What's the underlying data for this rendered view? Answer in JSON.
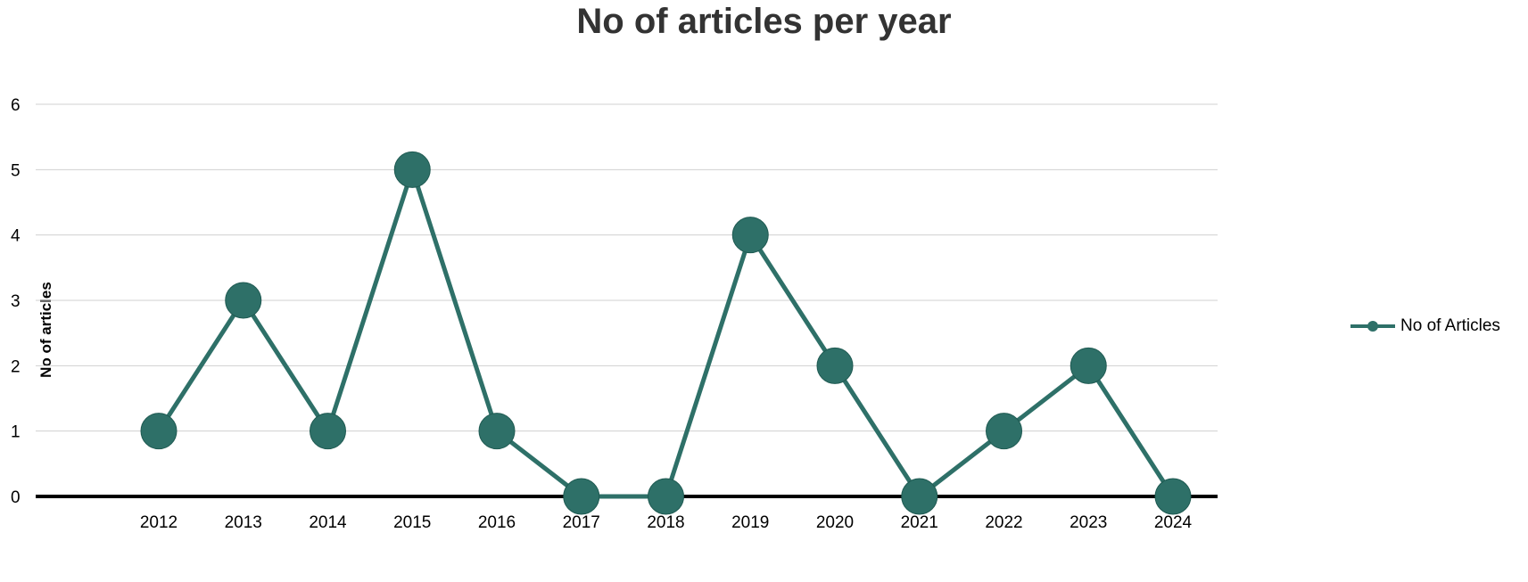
{
  "chart_data": {
    "type": "line",
    "title": "No of articles per year",
    "xlabel": "",
    "ylabel": "No of articles",
    "categories": [
      "2012",
      "2013",
      "2014",
      "2015",
      "2016",
      "2017",
      "2018",
      "2019",
      "2020",
      "2021",
      "2022",
      "2023",
      "2024"
    ],
    "series": [
      {
        "name": "No of Articles",
        "values": [
          1,
          3,
          1,
          5,
          1,
          0,
          0,
          4,
          2,
          0,
          1,
          2,
          0
        ]
      }
    ],
    "ylim": [
      0,
      6
    ],
    "yticks": [
      "0",
      "1",
      "2",
      "3",
      "4",
      "5",
      "6"
    ],
    "grid": true,
    "legend_position": "right",
    "colors": {
      "series": "#2e7068",
      "grid": "#d0d0d0",
      "axis": "#000000"
    }
  }
}
